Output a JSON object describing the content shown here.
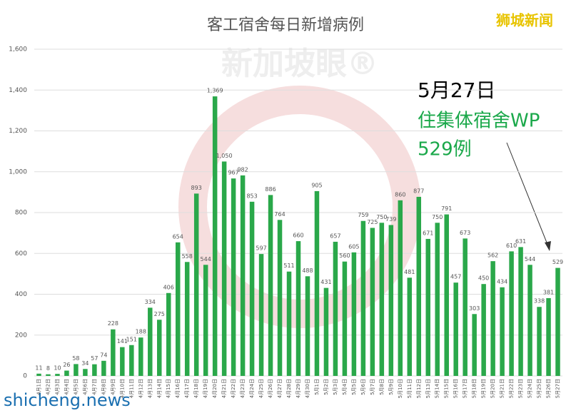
{
  "chart_data": {
    "type": "bar",
    "title": "客工宿舍每日新增病例",
    "source": "狮城新闻",
    "watermark": "新加坡眼®",
    "site": "shicheng.news",
    "annotation": {
      "date": "5月27日",
      "group": "住集体宿舍WP",
      "count": "529例"
    },
    "categories": [
      "4月1日",
      "4月2日",
      "4月3日",
      "4月4日",
      "4月5日",
      "4月6日",
      "4月7日",
      "4月8日",
      "4月9日",
      "4月10日",
      "4月11日",
      "4月12日",
      "4月13日",
      "4月14日",
      "4月15日",
      "4月16日",
      "4月17日",
      "4月18日",
      "4月19日",
      "4月20日",
      "4月21日",
      "4月22日",
      "4月23日",
      "4月24日",
      "4月25日",
      "4月26日",
      "4月27日",
      "4月28日",
      "4月29日",
      "4月30日",
      "5月1日",
      "5月2日",
      "5月3日",
      "5月4日",
      "5月5日",
      "5月6日",
      "5月7日",
      "5月8日",
      "5月9日",
      "5月10日",
      "5月11日",
      "5月12日",
      "5月13日",
      "5月14日",
      "5月15日",
      "5月16日",
      "5月17日",
      "5月18日",
      "5月19日",
      "5月20日",
      "5月21日",
      "5月22日",
      "5月23日",
      "5月24日",
      "5月25日",
      "5月26日",
      "5月27日"
    ],
    "values": [
      11,
      8,
      10,
      26,
      58,
      34,
      57,
      74,
      228,
      141,
      151,
      188,
      334,
      275,
      406,
      654,
      558,
      893,
      544,
      1369,
      1050,
      967,
      982,
      853,
      597,
      886,
      764,
      511,
      660,
      488,
      905,
      431,
      657,
      560,
      605,
      759,
      725,
      750,
      739,
      860,
      481,
      877,
      671,
      750,
      791,
      457,
      673,
      303,
      450,
      562,
      434,
      610,
      631,
      544,
      338,
      381,
      529
    ],
    "value_labels": [
      "11",
      "8",
      "10",
      "26",
      "58",
      "34",
      "57",
      "74",
      "228",
      "141",
      "151",
      "188",
      "334",
      "275",
      "406",
      "654",
      "558",
      "893",
      "544",
      "1,369",
      "1,050",
      "967",
      "982",
      "853",
      "597",
      "886",
      "764",
      "511",
      "660",
      "488",
      "905",
      "431",
      "657",
      "560",
      "605",
      "759",
      "725",
      "750",
      "739",
      "860",
      "481",
      "877",
      "671",
      "750",
      "791",
      "457",
      "673",
      "303",
      "450",
      "562",
      "434",
      "610",
      "631",
      "544",
      "338",
      "381",
      "529"
    ],
    "color": "#2aa84a",
    "ylim": [
      0,
      1600
    ],
    "yticks": [
      0,
      200,
      400,
      600,
      800,
      {
        "value": 1000,
        "label": "1,000"
      },
      {
        "value": 1200,
        "label": "1,200"
      },
      {
        "value": 1400,
        "label": "1,400"
      },
      {
        "value": 1600,
        "label": "1,600"
      }
    ],
    "grid": true
  }
}
